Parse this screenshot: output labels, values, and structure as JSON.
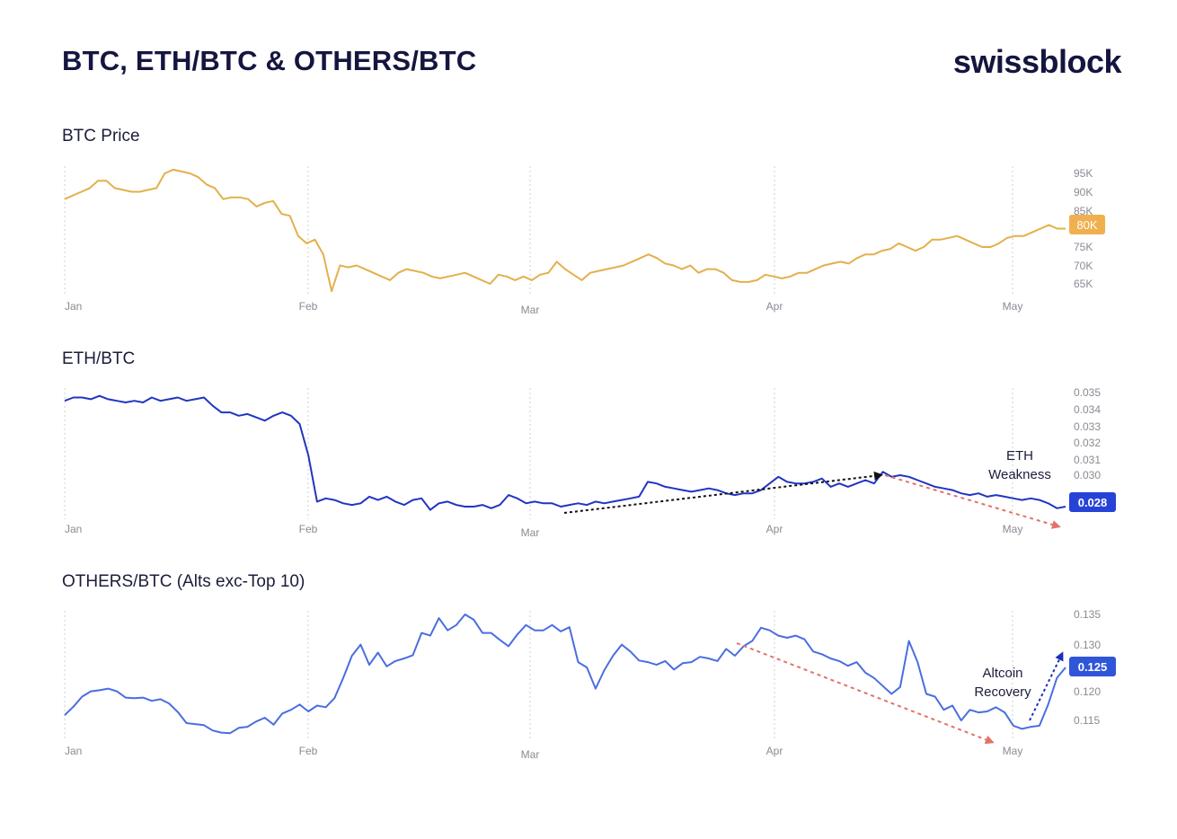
{
  "header": {
    "title": "BTC, ETH/BTC & OTHERS/BTC",
    "brand": "swissblock"
  },
  "colors": {
    "btc_line": "#e3b04b",
    "btc_badge": "#f0b04f",
    "eth_line": "#2035c2",
    "eth_badge": "#2643d6",
    "others_line": "#4a6ee0",
    "others_badge": "#2f55d9",
    "black_arrow": "#111111",
    "red_arrow": "#e07368",
    "blue_arrow": "#1c2fb8"
  },
  "chart_data": [
    {
      "type": "line",
      "title": "BTC Price",
      "x_labels": [
        "Jan",
        "Feb",
        "Mar",
        "Apr",
        "May"
      ],
      "y_ticks": [
        "95K",
        "90K",
        "85K",
        "75K",
        "70K",
        "65K"
      ],
      "ylim": [
        62,
        97
      ],
      "last_value_label": "80K",
      "last_value": 80,
      "series": [
        {
          "values": [
            88,
            89,
            90,
            91,
            93,
            93,
            91,
            90.5,
            90,
            90,
            90.5,
            91,
            95,
            96,
            95.5,
            95,
            94,
            92,
            91,
            88,
            88.5,
            88.5,
            88,
            86,
            87,
            87.5,
            84,
            83.5,
            78,
            76,
            77,
            73,
            63,
            70,
            69.5,
            70,
            69,
            68,
            67,
            66,
            68,
            69,
            68.5,
            68,
            67,
            66.5,
            67,
            67.5,
            68,
            67,
            66,
            65,
            67.5,
            67,
            66,
            67,
            66,
            67.5,
            68,
            71,
            69,
            67.5,
            66,
            68,
            68.5,
            69,
            69.5,
            70,
            71,
            72,
            73,
            72,
            70.5,
            70,
            69,
            70,
            68,
            69,
            69,
            68,
            66,
            65.5,
            65.5,
            66,
            67.5,
            67,
            66.5,
            67,
            68,
            68,
            69,
            70,
            70.5,
            71,
            70.5,
            72,
            73,
            73,
            74,
            74.5,
            76,
            75,
            74,
            75,
            77,
            77,
            77.5,
            78,
            77,
            76,
            75,
            75,
            76,
            77.5,
            78,
            78,
            79,
            80,
            81,
            80,
            80
          ]
        }
      ]
    },
    {
      "type": "line",
      "title": "ETH/BTC",
      "x_labels": [
        "Jan",
        "Feb",
        "Mar",
        "Apr",
        "May"
      ],
      "y_ticks": [
        "0.035",
        "0.034",
        "0.033",
        "0.032",
        "0.031",
        "0.030"
      ],
      "ylim": [
        0.0272,
        0.0358
      ],
      "last_value_label": "0.028",
      "last_value": 0.028,
      "series": [
        {
          "values": [
            0.0345,
            0.0347,
            0.0347,
            0.0346,
            0.0348,
            0.0346,
            0.0345,
            0.0344,
            0.0345,
            0.0344,
            0.0347,
            0.0345,
            0.0346,
            0.0347,
            0.0345,
            0.0346,
            0.0347,
            0.0342,
            0.0338,
            0.0338,
            0.0336,
            0.0337,
            0.0335,
            0.0333,
            0.0336,
            0.0338,
            0.0336,
            0.0331,
            0.0312,
            0.0284,
            0.0286,
            0.0285,
            0.0283,
            0.0282,
            0.0283,
            0.0287,
            0.0285,
            0.0287,
            0.0284,
            0.0282,
            0.0285,
            0.0286,
            0.0279,
            0.0283,
            0.0284,
            0.0282,
            0.0281,
            0.0281,
            0.0282,
            0.028,
            0.0282,
            0.0288,
            0.0286,
            0.0283,
            0.0284,
            0.0283,
            0.0283,
            0.0281,
            0.0282,
            0.0283,
            0.0282,
            0.0284,
            0.0283,
            0.0284,
            0.0285,
            0.0286,
            0.0287,
            0.0296,
            0.0295,
            0.0293,
            0.0292,
            0.0291,
            0.029,
            0.0291,
            0.0292,
            0.0291,
            0.0289,
            0.0288,
            0.0289,
            0.0289,
            0.0291,
            0.0295,
            0.0299,
            0.0296,
            0.0295,
            0.0295,
            0.0296,
            0.0298,
            0.0293,
            0.0295,
            0.0293,
            0.0295,
            0.0297,
            0.0295,
            0.0302,
            0.0299,
            0.03,
            0.0299,
            0.0297,
            0.0295,
            0.0293,
            0.0292,
            0.0291,
            0.0289,
            0.0288,
            0.0289,
            0.0287,
            0.0288,
            0.0287,
            0.0286,
            0.0285,
            0.0286,
            0.0285,
            0.0283,
            0.028,
            0.0281
          ]
        }
      ]
    },
    {
      "type": "line",
      "title": "OTHERS/BTC (Alts exc-Top 10)",
      "x_labels": [
        "Jan",
        "Feb",
        "Mar",
        "Apr",
        "May"
      ],
      "y_ticks": [
        "0.135",
        "0.130",
        "0.125",
        "0.120",
        "0.115"
      ],
      "ylim": [
        0.1105,
        0.1365
      ],
      "last_value_label": "0.125",
      "last_value": 0.125,
      "series": [
        {
          "values": [
            0.116,
            0.1176,
            0.1195,
            0.1205,
            0.1207,
            0.121,
            0.1205,
            0.1193,
            0.1192,
            0.1193,
            0.1187,
            0.119,
            0.1182,
            0.1166,
            0.1145,
            0.1143,
            0.1141,
            0.1131,
            0.1127,
            0.1126,
            0.1136,
            0.1138,
            0.1148,
            0.1155,
            0.1142,
            0.1163,
            0.117,
            0.118,
            0.1167,
            0.1178,
            0.1175,
            0.1192,
            0.123,
            0.1272,
            0.1293,
            0.1255,
            0.1278,
            0.1252,
            0.1262,
            0.1267,
            0.1273,
            0.1315,
            0.131,
            0.1343,
            0.132,
            0.133,
            0.135,
            0.134,
            0.1315,
            0.1315,
            0.1302,
            0.129,
            0.1312,
            0.133,
            0.132,
            0.132,
            0.133,
            0.1318,
            0.1326,
            0.126,
            0.125,
            0.121,
            0.1245,
            0.1272,
            0.1293,
            0.128,
            0.1263,
            0.126,
            0.1255,
            0.1262,
            0.1246,
            0.1258,
            0.126,
            0.127,
            0.1267,
            0.1262,
            0.1285,
            0.1272,
            0.129,
            0.13,
            0.1325,
            0.132,
            0.131,
            0.1306,
            0.131,
            0.1303,
            0.128,
            0.1275,
            0.1267,
            0.1262,
            0.1253,
            0.126,
            0.124,
            0.123,
            0.1215,
            0.12,
            0.1213,
            0.13,
            0.126,
            0.12,
            0.1195,
            0.117,
            0.1178,
            0.115,
            0.117,
            0.1165,
            0.1167,
            0.1175,
            0.1165,
            0.114,
            0.1134,
            0.1138,
            0.114,
            0.118,
            0.123,
            0.125
          ]
        }
      ]
    }
  ],
  "annotations": {
    "eth": "ETH Weakness",
    "eth_line1": "ETH",
    "eth_line2": "Weakness",
    "others_line1": "Altcoin",
    "others_line2": "Recovery"
  }
}
